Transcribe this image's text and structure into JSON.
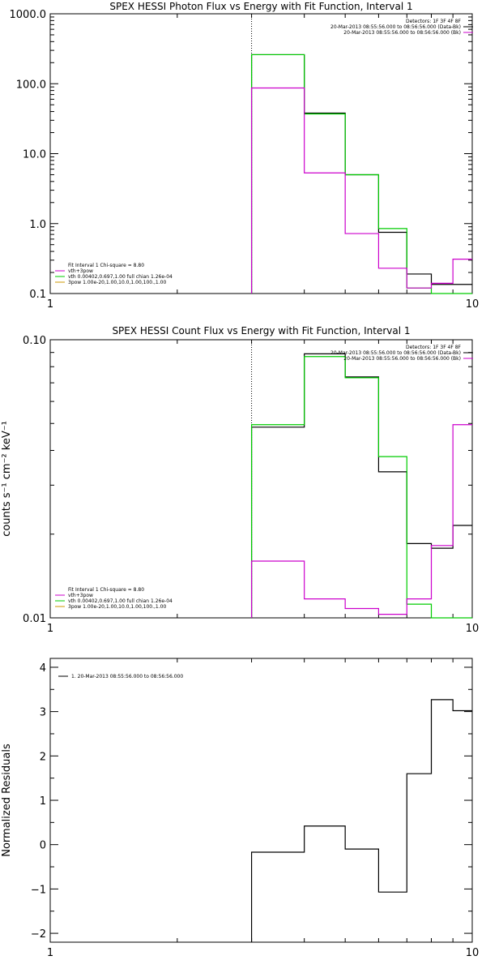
{
  "chart_data": [
    {
      "type": "line",
      "step": true,
      "title": "SPEX HESSI Photon Flux vs Energy with Fit Function, Interval 1",
      "xlabel": "",
      "ylabel": "",
      "xscale": "log",
      "yscale": "log",
      "xlim": [
        1,
        10
      ],
      "ylim": [
        0.1,
        1000
      ],
      "xticks": [
        {
          "v": 1,
          "label": "1"
        },
        {
          "v": 10,
          "label": "10"
        }
      ],
      "yticks": [
        {
          "v": 0.1,
          "label": "0.1"
        },
        {
          "v": 1,
          "label": "1.0"
        },
        {
          "v": 10,
          "label": "10.0"
        },
        {
          "v": 100,
          "label": "100.0"
        },
        {
          "v": 1000,
          "label": "1000.0"
        }
      ],
      "marker_line_x": 3.0,
      "edges": [
        3.0,
        4.0,
        5.0,
        6.0,
        7.0,
        8.0,
        9.0,
        10.0
      ],
      "legend_top_right": [
        {
          "text": "Detectors: 1F 3F 4F 8F",
          "color": ""
        },
        {
          "text": "20-Mar-2013 08:55:56.000 to 08:56:56.000 (Data-Bk)",
          "color": "#000000"
        },
        {
          "text": "20-Mar-2013 08:55:56.000 to 08:56:56.000 (Bk)",
          "color": "#cc00cc"
        }
      ],
      "legend_bottom_left": [
        {
          "text": "Fit Interval 1   Chi-square = 8.80",
          "color": ""
        },
        {
          "text": "vth+3pow",
          "color": "#cc00cc"
        },
        {
          "text": "vth 0.00402,0.697,1.00   full chian 1.26e-04",
          "color": "#00cc00"
        },
        {
          "text": "3pow 1.00e-20,1.00,10.0,1.00,100.,1.00",
          "color": "#cc9900"
        }
      ],
      "series": [
        {
          "color": "#000000",
          "values": [
            260,
            38,
            5.0,
            0.75,
            0.19,
            0.135,
            0.135
          ]
        },
        {
          "color": "#00cc00",
          "values": [
            260,
            37,
            5.0,
            0.85,
            0.12,
            0.1,
            0.1
          ]
        },
        {
          "color": "#cc00cc",
          "values": [
            87,
            5.3,
            0.72,
            0.23,
            0.12,
            0.14,
            0.31
          ]
        }
      ]
    },
    {
      "type": "line",
      "step": true,
      "title": "SPEX HESSI Count Flux vs Energy with Fit Function, Interval 1",
      "xlabel": "",
      "ylabel": "counts s⁻¹ cm⁻² keV⁻¹",
      "xscale": "log",
      "yscale": "log",
      "xlim": [
        1,
        10
      ],
      "ylim": [
        0.01,
        0.1
      ],
      "xticks": [
        {
          "v": 1,
          "label": "1"
        },
        {
          "v": 10,
          "label": "10"
        }
      ],
      "yticks": [
        {
          "v": 0.01,
          "label": "0.01"
        },
        {
          "v": 0.1,
          "label": "0.10"
        }
      ],
      "marker_line_x": 3.0,
      "edges": [
        3.0,
        4.0,
        5.0,
        6.0,
        7.0,
        8.0,
        9.0,
        10.0
      ],
      "legend_top_right": [
        {
          "text": "Detectors: 1F 3F 4F 8F",
          "color": ""
        },
        {
          "text": "20-Mar-2013 08:55:56.000 to 08:56:56.000 (Data-Bk)",
          "color": "#000000"
        },
        {
          "text": "20-Mar-2013 08:55:56.000 to 08:56:56.000 (Bk)",
          "color": "#cc00cc"
        }
      ],
      "legend_bottom_left": [
        {
          "text": "Fit Interval 1   Chi-square = 8.80",
          "color": ""
        },
        {
          "text": "vth+3pow",
          "color": "#cc00cc"
        },
        {
          "text": "vth 0.00402,0.697,1.00   full chian 1.26e-04",
          "color": "#00cc00"
        },
        {
          "text": "3pow 1.00e-20,1.00,10.0,1.00,100.,1.00",
          "color": "#cc9900"
        }
      ],
      "series": [
        {
          "color": "#000000",
          "values": [
            0.0485,
            0.089,
            0.0735,
            0.0335,
            0.0185,
            0.0178,
            0.0215
          ]
        },
        {
          "color": "#00cc00",
          "values": [
            0.0495,
            0.087,
            0.073,
            0.038,
            0.0112,
            0.0098,
            0.0098
          ]
        },
        {
          "color": "#cc00cc",
          "values": [
            0.016,
            0.0117,
            0.0108,
            0.0103,
            0.0117,
            0.0182,
            0.0495
          ]
        }
      ]
    },
    {
      "type": "line",
      "step": true,
      "title": "",
      "xlabel": "",
      "ylabel": "Normalized Residuals",
      "xscale": "log",
      "yscale": "linear",
      "xlim": [
        1,
        10
      ],
      "ylim": [
        -2.2,
        4.2
      ],
      "xticks": [
        {
          "v": 1,
          "label": "1"
        },
        {
          "v": 10,
          "label": "10"
        }
      ],
      "yticks": [
        {
          "v": -2,
          "label": "−2"
        },
        {
          "v": -1,
          "label": "−1"
        },
        {
          "v": 0,
          "label": "0"
        },
        {
          "v": 1,
          "label": "1"
        },
        {
          "v": 2,
          "label": "2"
        },
        {
          "v": 3,
          "label": "3"
        },
        {
          "v": 4,
          "label": "4"
        }
      ],
      "edges": [
        3.0,
        4.0,
        5.0,
        6.0,
        7.0,
        8.0,
        9.0,
        10.0
      ],
      "legend_top_left": [
        {
          "text": "1. 20-Mar-2013 08:55:56.000 to 08:56:56.000",
          "color": "#000000"
        }
      ],
      "series": [
        {
          "color": "#000000",
          "values": [
            -0.17,
            0.42,
            -0.1,
            -1.07,
            1.6,
            3.27,
            3.02
          ]
        }
      ]
    }
  ]
}
